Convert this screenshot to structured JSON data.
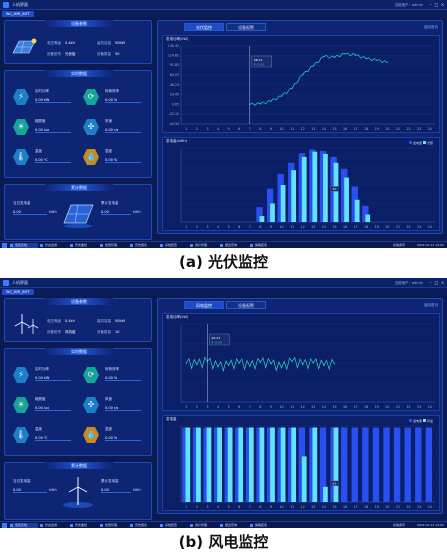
{
  "captions": {
    "a": "(a) 光伏监控",
    "b": "(b) 风电监控"
  },
  "colors": {
    "bg": "#0a1a52",
    "panel": "#0e2574",
    "accent": "#1e4bc8",
    "line": "#2fd1c8",
    "bar1": "#2a4ff0",
    "bar2": "#5fe3ff"
  },
  "app": {
    "title": "人机界面",
    "user": "当前用户：admin",
    "tab": "WC_HMI_INTF"
  },
  "pv": {
    "params_title": "设备参数",
    "params": [
      {
        "label": "电压等级",
        "value": "0.4kV"
      },
      {
        "label": "装机容量",
        "value": "50kW"
      },
      {
        "label": "设备型号",
        "value": "光伏板"
      },
      {
        "label": "设备数量",
        "value": "50"
      }
    ],
    "realtime_title": "实时数据",
    "metrics": [
      {
        "name": "实时功率",
        "value": "0.00 kW",
        "icon": "power-icon"
      },
      {
        "name": "转换效率",
        "value": "0.00 %",
        "icon": "efficiency-icon"
      },
      {
        "name": "辐照度",
        "value": "0.00 lux",
        "icon": "irradiance-icon"
      },
      {
        "name": "风速",
        "value": "0.00 r/s",
        "icon": "fan-icon"
      },
      {
        "name": "温度",
        "value": "0.00 ℃",
        "icon": "temperature-icon"
      },
      {
        "name": "湿度",
        "value": "0.00 %",
        "icon": "humidity-icon"
      }
    ],
    "energy_title": "累计数据",
    "today_label": "当日发电量",
    "today_value": "0.00",
    "total_label": "累计发电量",
    "total_value": "0.00",
    "unit": "kWh",
    "tabs": [
      "光伏监控",
      "设备报警"
    ],
    "back": "返回首页",
    "taskbar": [
      "监控系统",
      "状态监测",
      "历史曲线",
      "告警管理",
      "历史报表",
      "系统配置",
      "用户管理",
      "报表查询",
      "策略配置"
    ],
    "tray": "系统通讯",
    "clock": "2022-01-11 14:00"
  },
  "wind": {
    "params": [
      {
        "label": "电压等级",
        "value": "0.4kV"
      },
      {
        "label": "装机容量",
        "value": "50kW"
      },
      {
        "label": "设备型号",
        "value": "风机组"
      },
      {
        "label": "设备数量",
        "value": "10"
      }
    ],
    "metrics": [
      {
        "name": "实时功率",
        "value": "0.00 kW",
        "icon": "power-icon"
      },
      {
        "name": "转换效率",
        "value": "0.00 %",
        "icon": "efficiency-icon"
      },
      {
        "name": "辐照度",
        "value": "0.00 lux",
        "icon": "irradiance-icon"
      },
      {
        "name": "风速",
        "value": "0.00 r/s",
        "icon": "fan-icon"
      },
      {
        "name": "温度",
        "value": "0.00 ℃",
        "icon": "temperature-icon"
      },
      {
        "name": "湿度",
        "value": "0.00 %",
        "icon": "humidity-icon"
      }
    ],
    "tabs": [
      "风电监控",
      "设备报警"
    ],
    "clock": "2022-01-11 14:00"
  },
  "chart_data": [
    {
      "id": "pv-power",
      "type": "line",
      "title": "发电功率(kW)",
      "x": [
        "1",
        "2",
        "3",
        "4",
        "5",
        "6",
        "7",
        "8",
        "9",
        "10",
        "11",
        "12",
        "13",
        "14",
        "15",
        "16",
        "17",
        "18",
        "19",
        "20",
        "21",
        "22",
        "23",
        "24"
      ],
      "yticks": [
        "136.42",
        "114.62",
        "91.83",
        "69.03",
        "46.24",
        "23.45",
        "0.65",
        "-22.15",
        "-44.94"
      ],
      "ylim": [
        -44.94,
        136.42
      ],
      "series": [
        {
          "values": [
            null,
            null,
            null,
            null,
            null,
            null,
            0.6,
            2,
            8,
            20,
            38,
            70,
            90,
            112,
            110,
            118,
            115,
            107,
            103,
            98,
            null,
            null,
            null,
            null
          ]
        }
      ],
      "tooltip": {
        "title": "08:11",
        "text": "P: 0.00"
      }
    },
    {
      "id": "pv-energy",
      "type": "bar",
      "title": "发电量(kWh)",
      "legend": [
        "发电量",
        "光照"
      ],
      "categories": [
        "1",
        "2",
        "3",
        "4",
        "5",
        "6",
        "7",
        "8",
        "9",
        "10",
        "11",
        "12",
        "13",
        "14",
        "15",
        "16",
        "17",
        "18",
        "19",
        "20",
        "21",
        "22",
        "23",
        "24"
      ],
      "series": [
        {
          "values": [
            0,
            0,
            0,
            0,
            0,
            0,
            0,
            20,
            45,
            65,
            80,
            93,
            98,
            96,
            88,
            72,
            48,
            22,
            0,
            0,
            0,
            0,
            0,
            0
          ]
        },
        {
          "values": [
            0,
            0,
            0,
            0,
            0,
            0,
            0,
            8,
            25,
            50,
            70,
            88,
            95,
            92,
            80,
            60,
            30,
            10,
            0,
            0,
            0,
            0,
            0,
            0
          ]
        }
      ],
      "label": "40"
    },
    {
      "id": "wind-power",
      "type": "line",
      "title": "发电功率(kW)",
      "x": [
        "1",
        "2",
        "3",
        "4",
        "5",
        "6",
        "7",
        "8",
        "9",
        "10",
        "11",
        "12",
        "13",
        "14",
        "15",
        "16",
        "17",
        "18",
        "19",
        "20",
        "21",
        "22",
        "23",
        "24"
      ],
      "series": [
        {
          "values": [
            50,
            48,
            52,
            45,
            47,
            50,
            46,
            51,
            49,
            44,
            52,
            48,
            50,
            47,
            49,
            null,
            null,
            null,
            null,
            null,
            null,
            null,
            null,
            null
          ]
        }
      ],
      "tooltip": {
        "title": "05:23",
        "text": "P: 0.00"
      }
    },
    {
      "id": "wind-energy",
      "type": "bar",
      "title": "发电量",
      "legend": [
        "发电量",
        "风速"
      ],
      "categories": [
        "1",
        "2",
        "3",
        "4",
        "5",
        "6",
        "7",
        "8",
        "9",
        "10",
        "11",
        "12",
        "13",
        "14",
        "15",
        "16",
        "17",
        "18",
        "19",
        "20",
        "21",
        "22",
        "23",
        "24"
      ],
      "series": [
        {
          "values": [
            98,
            98,
            98,
            98,
            98,
            98,
            98,
            98,
            98,
            98,
            98,
            98,
            98,
            98,
            98,
            98,
            98,
            98,
            98,
            98,
            98,
            98,
            98,
            98
          ]
        },
        {
          "values": [
            98,
            98,
            98,
            98,
            98,
            98,
            98,
            98,
            98,
            98,
            98,
            60,
            98,
            20,
            98,
            0,
            0,
            0,
            0,
            0,
            0,
            0,
            0,
            0
          ]
        }
      ],
      "label": "63"
    }
  ]
}
